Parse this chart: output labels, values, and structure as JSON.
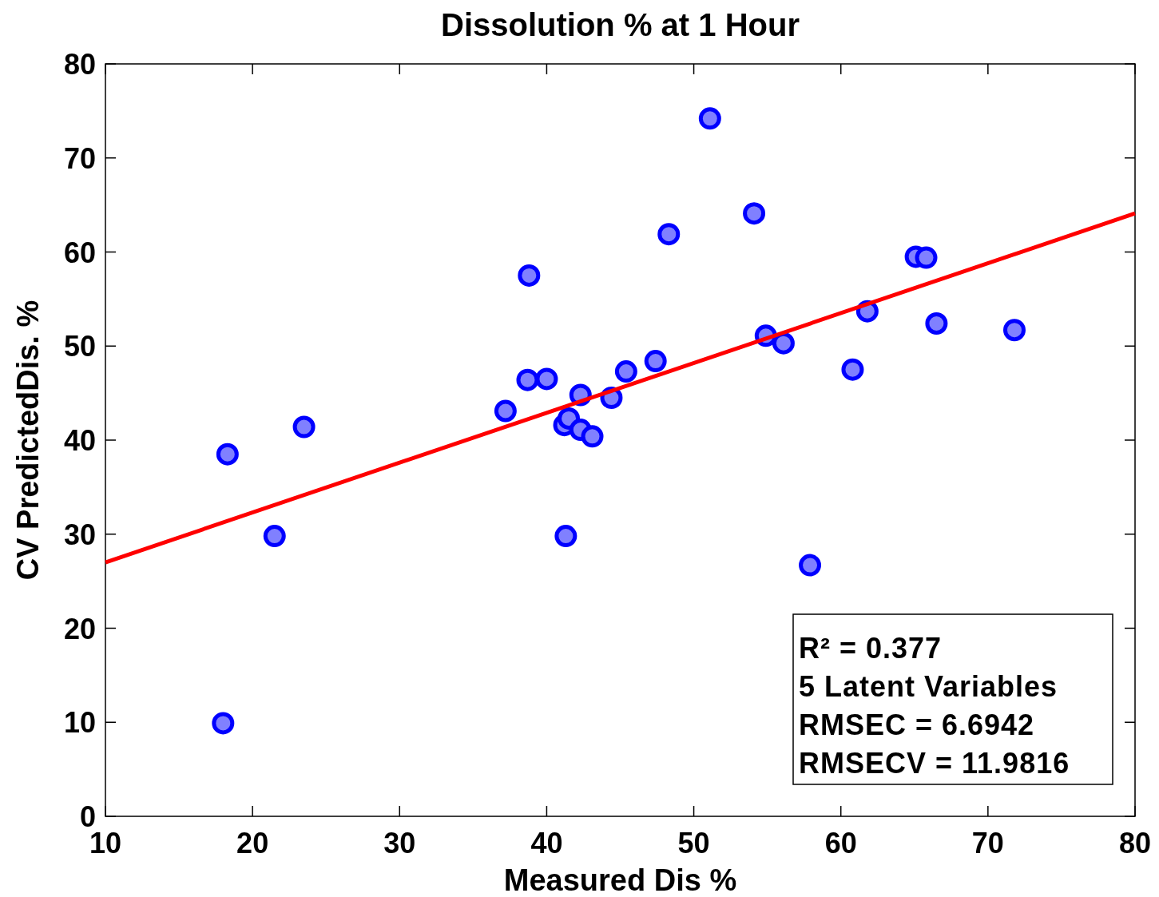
{
  "chart_data": {
    "type": "scatter",
    "title": "Dissolution % at 1 Hour",
    "xlabel": "Measured Dis %",
    "ylabel": "CV PredictedDis. %",
    "xlim": [
      10,
      80
    ],
    "xticks": [
      10,
      20,
      30,
      40,
      50,
      60,
      70,
      80
    ],
    "ylim": [
      0,
      80
    ],
    "yticks": [
      0,
      10,
      20,
      30,
      40,
      50,
      60,
      70,
      80
    ],
    "grid": false,
    "series": [
      {
        "marker": "circle",
        "color": "#0000ff",
        "x": [
          18.0,
          18.3,
          21.5,
          23.5,
          37.2,
          38.7,
          38.8,
          40.0,
          41.2,
          41.5,
          41.3,
          42.3,
          42.3,
          43.1,
          44.4,
          45.4,
          47.4,
          48.3,
          51.1,
          54.1,
          54.9,
          56.1,
          57.9,
          60.8,
          61.8,
          65.1,
          65.8,
          66.5,
          71.8
        ],
        "values": [
          9.9,
          38.5,
          29.8,
          41.4,
          43.1,
          46.4,
          57.5,
          46.5,
          41.6,
          42.3,
          29.8,
          44.8,
          41.1,
          40.4,
          44.5,
          47.3,
          48.4,
          61.9,
          74.2,
          64.1,
          51.1,
          50.3,
          26.7,
          47.5,
          53.7,
          59.5,
          59.4,
          52.4,
          51.7
        ]
      },
      {
        "type": "line",
        "color": "#ff0000",
        "x": [
          10,
          80
        ],
        "values": [
          27.0,
          64.1
        ],
        "line_style": "solid"
      }
    ],
    "annotations": [
      "R² = 0.377",
      "5 Latent Variables",
      "RMSEC = 6.6942",
      "RMSECV = 11.9816"
    ]
  }
}
